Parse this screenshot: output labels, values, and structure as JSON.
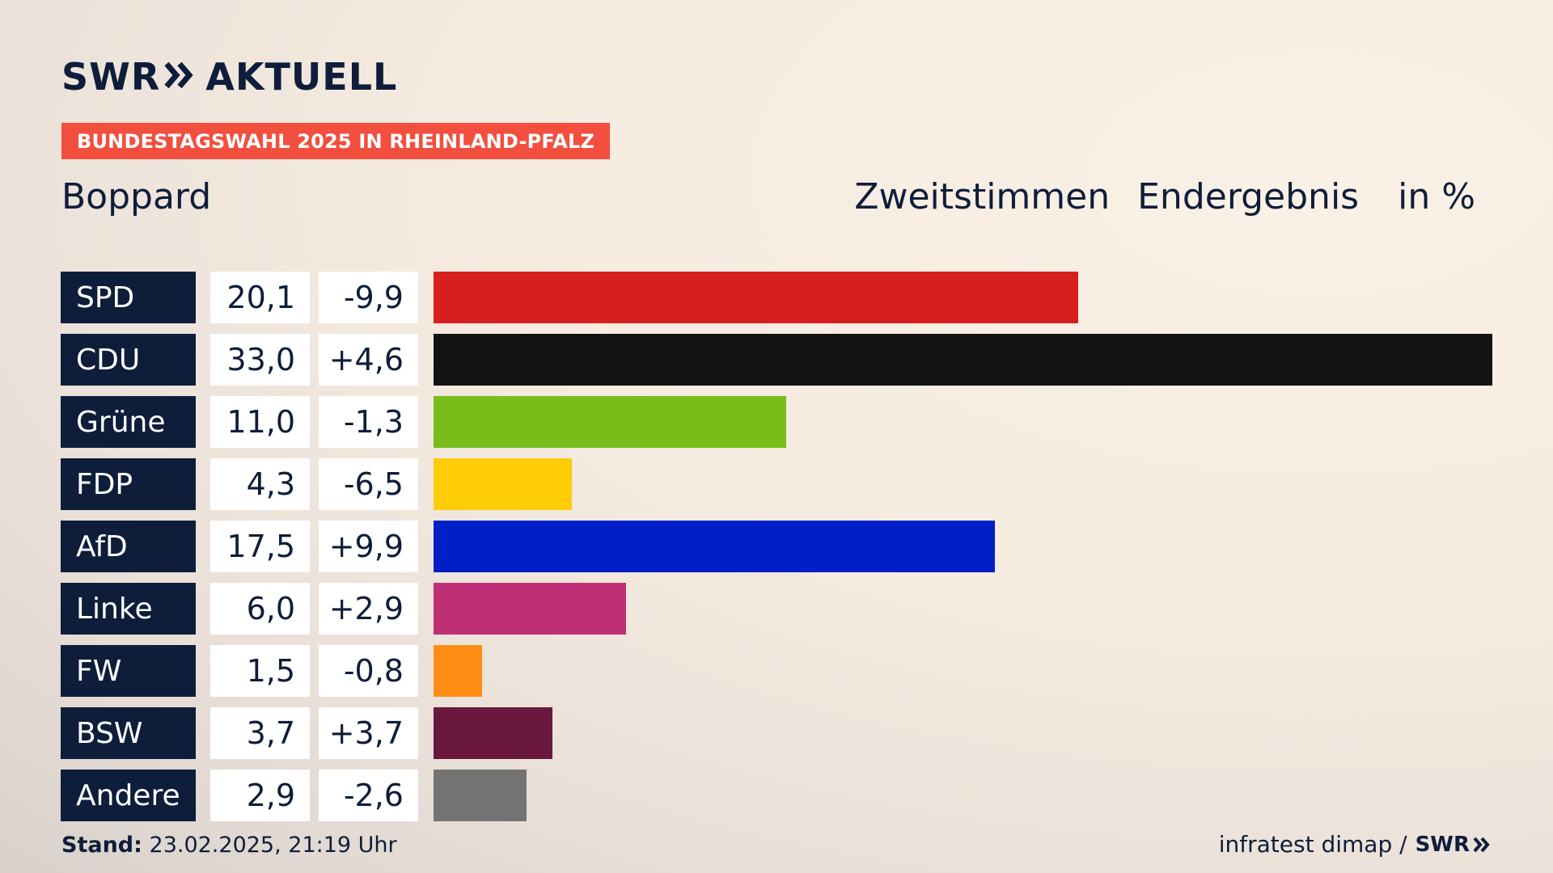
{
  "logo": {
    "left": "SWR",
    "right": "AKTUELL"
  },
  "badge": "BUNDESTAGSWAHL 2025 IN RHEINLAND-PFALZ",
  "place": "Boppard",
  "header": {
    "vote_type": "Zweitstimmen",
    "result_type": "Endergebnis",
    "unit": "in %"
  },
  "chart_data": {
    "type": "bar",
    "orientation": "horizontal",
    "title": "Boppard",
    "xlim": [
      0,
      33.0
    ],
    "categories": [
      "SPD",
      "CDU",
      "Grüne",
      "FDP",
      "AfD",
      "Linke",
      "FW",
      "BSW",
      "Andere"
    ],
    "values": [
      20.1,
      33.0,
      11.0,
      4.3,
      17.5,
      6.0,
      1.5,
      3.7,
      2.9
    ],
    "values_label": [
      "20,1",
      "33,0",
      "11,0",
      "4,3",
      "17,5",
      "6,0",
      "1,5",
      "3,7",
      "2,9"
    ],
    "diffs": [
      -9.9,
      4.6,
      -1.3,
      -6.5,
      9.9,
      2.9,
      -0.8,
      3.7,
      -2.6
    ],
    "diffs_label": [
      "-9,9",
      "+4,6",
      "-1,3",
      "-6,5",
      "+9,9",
      "+2,9",
      "-0,8",
      "+3,7",
      "-2,6"
    ],
    "colors": [
      "#d71f1f",
      "#121212",
      "#79bd1a",
      "#ffcc08",
      "#011fc7",
      "#be3075",
      "#ff8e16",
      "#6a183d",
      "#737373"
    ]
  },
  "footer": {
    "stand_label": "Stand:",
    "stand_value": "23.02.2025, 21:19 Uhr",
    "source": "infratest dimap /",
    "brand": "SWR"
  },
  "colors": {
    "navy": "#0e1d3a",
    "badge": "#f24f3e"
  }
}
